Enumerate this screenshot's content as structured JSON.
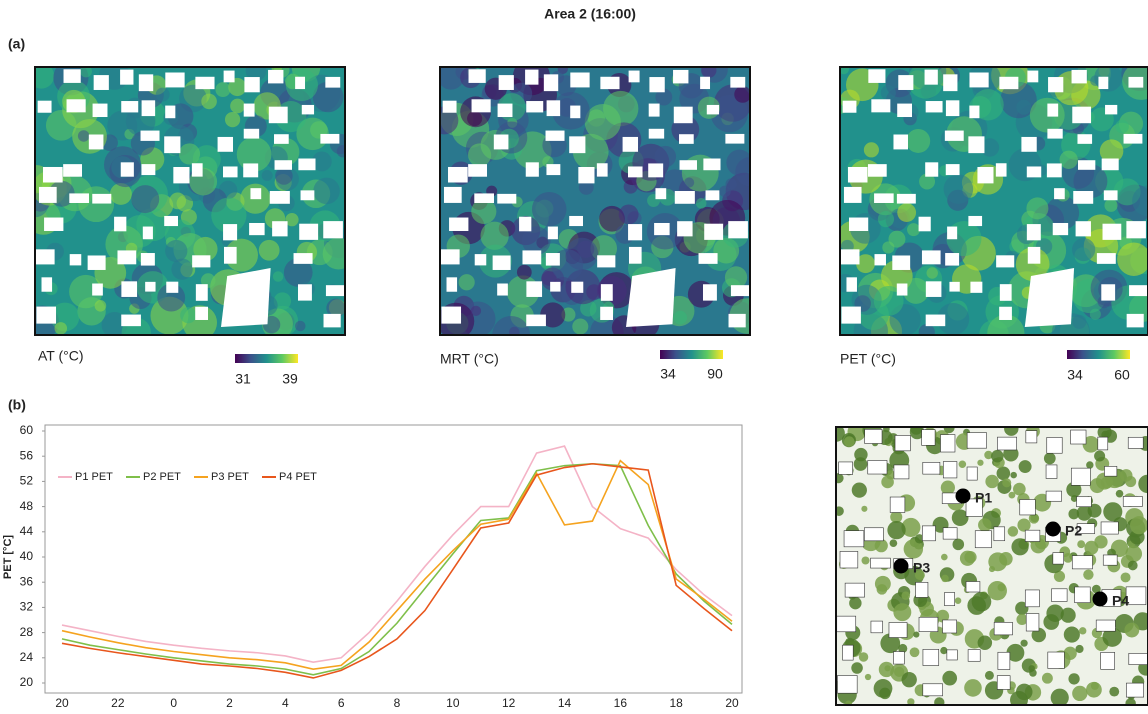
{
  "title": "Area 2 (16:00)",
  "panels": [
    "(a)",
    "(b)"
  ],
  "maps": [
    {
      "label": "AT (°C)",
      "scale": [
        31,
        39
      ]
    },
    {
      "label": "MRT (°C)",
      "scale": [
        34,
        90
      ]
    },
    {
      "label": "PET (°C)",
      "scale": [
        34,
        60
      ]
    }
  ],
  "site_map": {
    "points": [
      "P1",
      "P2",
      "P3",
      "P4"
    ]
  },
  "chart_data": {
    "type": "line",
    "ylabel": "PET [°C]",
    "categories": [
      "20",
      null,
      "22",
      null,
      "0",
      null,
      "2",
      null,
      "4",
      null,
      "6",
      null,
      "8",
      null,
      "10",
      null,
      "12",
      null,
      "14",
      null,
      "16",
      null,
      "18",
      null,
      "20"
    ],
    "series": [
      {
        "name": "P1 PET",
        "color": "#f4b3c6",
        "values": [
          29.2,
          28.3,
          27.4,
          26.6,
          26,
          25.5,
          25.1,
          24.8,
          24.3,
          23.3,
          24,
          28,
          33,
          38.5,
          43.5,
          48,
          48,
          56.5,
          57.6,
          48,
          44.5,
          43,
          38,
          34,
          30.7
        ]
      },
      {
        "name": "P2 PET",
        "color": "#7fbf4a",
        "values": [
          27,
          26,
          25.3,
          24.6,
          24,
          23.5,
          23,
          22.7,
          22.2,
          21.3,
          22.3,
          25,
          29.5,
          35,
          40.5,
          45.8,
          46.2,
          53.7,
          54.5,
          54.8,
          54.5,
          45,
          37.3,
          33,
          29.3
        ]
      },
      {
        "name": "P3 PET",
        "color": "#f5a31f",
        "values": [
          28.3,
          27.3,
          26.4,
          25.6,
          25,
          24.5,
          24,
          23.7,
          23.2,
          22.2,
          22.8,
          26.5,
          31.5,
          36.5,
          41,
          45.2,
          46,
          53.3,
          45.1,
          45.7,
          55.3,
          51.5,
          36.5,
          33.3,
          29.8
        ]
      },
      {
        "name": "P4 PET",
        "color": "#e8561c",
        "values": [
          26.3,
          25.5,
          24.8,
          24.2,
          23.6,
          23,
          22.7,
          22.3,
          21.7,
          20.8,
          22,
          24.2,
          27,
          31.5,
          38,
          44.6,
          45.4,
          53,
          54.2,
          54.8,
          54.3,
          53.8,
          35.5,
          31.8,
          28.3
        ]
      }
    ],
    "ylim": [
      20,
      60
    ],
    "yticks": [
      20,
      24,
      28,
      32,
      36,
      40,
      44,
      48,
      52,
      56,
      60
    ],
    "grid": false,
    "legend": "upper left"
  }
}
